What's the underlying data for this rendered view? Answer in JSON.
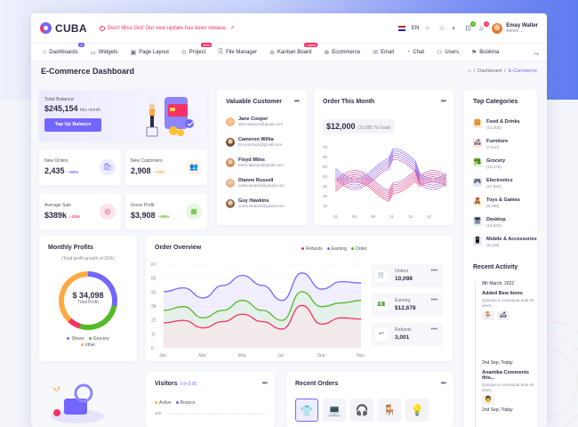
{
  "brand": {
    "name": "CUBA"
  },
  "announcement": {
    "text": "Don't Miss Out! Our new update has been release.",
    "arrow": "↗"
  },
  "topbar": {
    "language": "EN",
    "user_name": "Emay Walter",
    "user_role": "Admin",
    "cart_count": "4",
    "notif_count": "4"
  },
  "nav": {
    "items": [
      {
        "label": "Dashboards",
        "icon": "home-icon",
        "badge": "3"
      },
      {
        "label": "Widgets",
        "icon": "widgets-icon"
      },
      {
        "label": "Page Layout",
        "icon": "layout-icon"
      },
      {
        "label": "Project",
        "icon": "project-icon",
        "badge": "New"
      },
      {
        "label": "File Manager",
        "icon": "folder-icon"
      },
      {
        "label": "Kanban Board",
        "icon": "kanban-icon",
        "badge": "Latest"
      },
      {
        "label": "Ecommerce",
        "icon": "cart-icon"
      },
      {
        "label": "Email",
        "icon": "mail-icon"
      },
      {
        "label": "Chat",
        "icon": "chat-icon"
      },
      {
        "label": "Users",
        "icon": "users-icon"
      },
      {
        "label": "Bookma",
        "icon": "bookmark-icon"
      }
    ]
  },
  "page": {
    "title": "E-Commerce Dashboard",
    "crumb_home": "⌂",
    "crumb_1": "Dashboard",
    "crumb_2": "E-Commerce"
  },
  "balance": {
    "label": "Total Balance",
    "value": "$245,154",
    "period": "this month",
    "button": "Tap Up Balance"
  },
  "stats": [
    {
      "label": "New Orders",
      "value": "2,435",
      "change": "↑+50%",
      "color": "#7366ff"
    },
    {
      "label": "New Customers",
      "value": "2,908",
      "change": "↑+20%",
      "color": "#ffa941"
    },
    {
      "label": "Average Sale",
      "value": "$389k",
      "change": "↓-10%",
      "color": "#f73164"
    },
    {
      "label": "Gross Profit",
      "value": "$3,908",
      "change": "↑+80%",
      "color": "#51bb25"
    }
  ],
  "customers": {
    "title": "Valuable Customer",
    "items": [
      {
        "name": "Jane Cooper",
        "email": "alma.lawson@gmail.com"
      },
      {
        "name": "Cameron Willia",
        "email": "tim.jennings@gmail.com"
      },
      {
        "name": "Floyd Miles",
        "email": "kenzi.lawson@gmail.com"
      },
      {
        "name": "Dianne Russell",
        "email": "curtis.weaver@gmail.com"
      },
      {
        "name": "Guy Hawkins",
        "email": "curtis.weaver@gmail.com"
      }
    ]
  },
  "order_month": {
    "title": "Order This Month",
    "value": "$12,000",
    "goal": "(15,080 To Goal)",
    "y_ticks": [
      "70",
      "60",
      "50",
      "40",
      "30",
      "20",
      "10"
    ],
    "x_ticks": [
      "01",
      "04",
      "08",
      "11",
      "15",
      "12"
    ]
  },
  "categories": {
    "title": "Top Categories",
    "items": [
      {
        "name": "Food & Drinks",
        "count": "(12,200)",
        "icon": "🍔"
      },
      {
        "name": "Furniture",
        "count": "(7,510)",
        "icon": "🛋"
      },
      {
        "name": "Grocery",
        "count": "(15,475)",
        "icon": "🥦"
      },
      {
        "name": "Electronics",
        "count": "(27,840)",
        "icon": "🎮"
      },
      {
        "name": "Toys & Games",
        "count": "(8,788)",
        "icon": "🧸"
      },
      {
        "name": "Desktop",
        "count": "(10,673)",
        "icon": "🖥"
      },
      {
        "name": "Mobile & Accessories",
        "count": "(5,129)",
        "icon": "📱"
      }
    ]
  },
  "activity": {
    "title": "Recent Activity",
    "items": [
      {
        "date": "8th March, 2022",
        "head": "Added Bew Items",
        "desc": "Quisque a consequat ante sit amet.",
        "color": "#7366ff"
      },
      {
        "date": "2nd Sep, Today",
        "head": "Anamika Comments this...",
        "desc": "Quisque a consequat ante sit amet.",
        "color": "#ffa941"
      },
      {
        "date": "2nd Sep, Today",
        "head": "",
        "desc": "",
        "color": "#f73164"
      }
    ]
  },
  "monthly": {
    "title": "Monthly Profits",
    "subtitle": "(Total profit growth of 30%)",
    "value": "$ 34,098",
    "label": "Total Profit",
    "legend": [
      "Shoes",
      "Grocery",
      "other"
    ]
  },
  "overview": {
    "title": "Order Overview",
    "legend": [
      "Refunds",
      "Earning",
      "Order"
    ],
    "y_ticks": [
      "67",
      "56",
      "45",
      "34",
      "22",
      "11",
      "0"
    ],
    "x_ticks": [
      "Jan",
      "Mar",
      "May",
      "Jul",
      "Sep",
      "Nov"
    ],
    "side": [
      {
        "label": "Orders",
        "value": "10,098",
        "icon": "🛒"
      },
      {
        "label": "Earning",
        "value": "$12,678",
        "icon": "💵"
      },
      {
        "label": "Refunds",
        "value": "3,001",
        "icon": "↩"
      }
    ]
  },
  "visitors": {
    "title": "Visitors",
    "change": "(+2.8)",
    "legend": [
      "Active",
      "Bounce"
    ],
    "y_tick": "400"
  },
  "recent_orders": {
    "title": "Recent Orders",
    "items": [
      "👕",
      "💻",
      "🎧",
      "🪑",
      "💡"
    ]
  },
  "chart_data": [
    {
      "type": "line",
      "x": [
        "Jan",
        "Feb",
        "Mar",
        "Apr",
        "May",
        "Jun",
        "Jul",
        "Aug",
        "Sep",
        "Oct",
        "Nov"
      ],
      "series": [
        {
          "name": "Order",
          "values": [
            45,
            48,
            40,
            50,
            58,
            50,
            38,
            60,
            47,
            53,
            52
          ]
        },
        {
          "name": "Earning",
          "values": [
            30,
            33,
            24,
            30,
            38,
            30,
            22,
            45,
            33,
            36,
            38
          ]
        },
        {
          "name": "Refunds",
          "values": [
            20,
            22,
            16,
            21,
            27,
            21,
            15,
            34,
            19,
            24,
            23
          ]
        }
      ],
      "ylim": [
        0,
        67
      ],
      "title": "Order Overview"
    }
  ]
}
